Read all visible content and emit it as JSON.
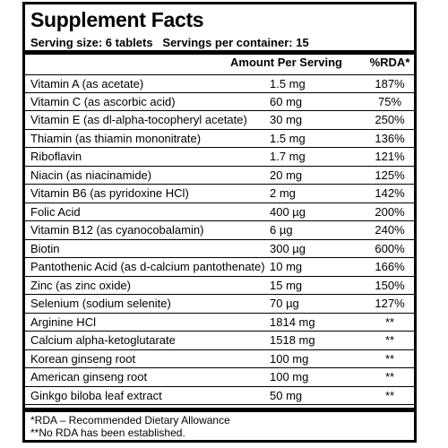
{
  "title": "Supplement Facts",
  "serving": {
    "size": "Serving size: 6 tablets",
    "per_container": "Servings per container: 15"
  },
  "columns": {
    "amount": "Amount Per Serving",
    "rda": "%RDA*"
  },
  "rows": [
    {
      "name": "Vitamin A (as acetate)",
      "amount": "1.5 mg",
      "rda": "187%"
    },
    {
      "name": "Vitamin C (as ascorbic acid)",
      "amount": "60 mg",
      "rda": "75%"
    },
    {
      "name": "Vitamin E (as dl-alpha-tocopheryl acetate)",
      "amount": "30 mg",
      "rda": "250%"
    },
    {
      "name": "Thiamin (as thiamin mononitrate)",
      "amount": "1.5 mg",
      "rda": "136%"
    },
    {
      "name": "Riboflavin",
      "amount": "1.7 mg",
      "rda": "121%"
    },
    {
      "name": "Niacin (as niacinamide)",
      "amount": "20 mg",
      "rda": "125%"
    },
    {
      "name": "Vitamin B6 (as pyridoxine HCl)",
      "amount": "2 mg",
      "rda": "142%"
    },
    {
      "name": "Folic Acid",
      "amount": "400 µg",
      "rda": "200%"
    },
    {
      "name": "Vitamin B12 (as cyanocobalamin)",
      "amount": "6 µg",
      "rda": "240%"
    },
    {
      "name": "Biotin",
      "amount": "300 µg",
      "rda": "600%"
    },
    {
      "name": "Pantothenic Acid (as d-calcium pantothenate)",
      "amount": "10 mg",
      "rda": "166%"
    },
    {
      "name": "Zinc (as zinc oxide)",
      "amount": "15 mg",
      "rda": "150%"
    },
    {
      "name": "Selenium (sodium selenite)",
      "amount": "70 µg",
      "rda": "127%"
    },
    {
      "name": "Arginine HCl",
      "amount": "1814 mg",
      "rda": "**"
    },
    {
      "name": "Calcium alpha-ketoglutarate",
      "amount": "1518 mg",
      "rda": "**"
    },
    {
      "name": "Korean ginseng root",
      "amount": "100 mg",
      "rda": "**"
    },
    {
      "name": "American ginseng root",
      "amount": "100 mg",
      "rda": "**"
    },
    {
      "name": "Ginkgo biloba leaf extract",
      "amount": "50 mg",
      "rda": "**"
    }
  ],
  "footnotes": {
    "rda": "*RDA – Recommended Dietary Allowance",
    "no_rda": "**No RDA has been established."
  }
}
